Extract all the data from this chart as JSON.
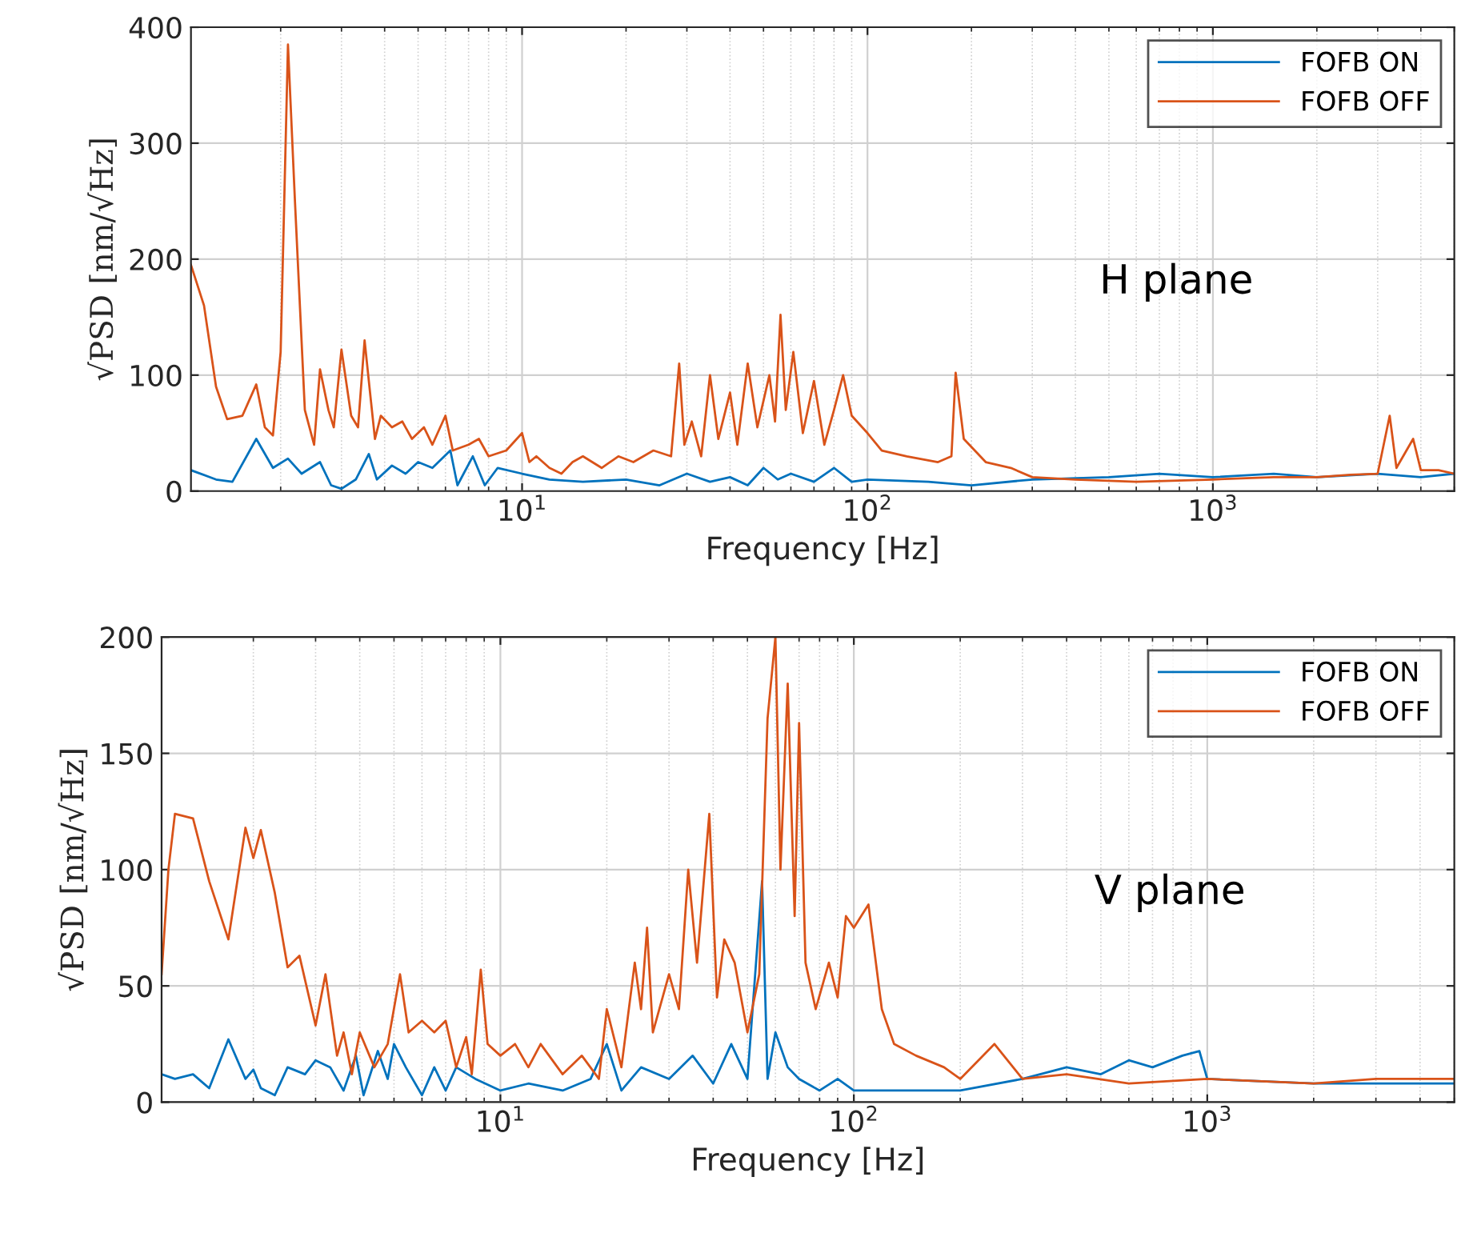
{
  "chart_data": [
    {
      "type": "line",
      "xlabel": "Frequency [Hz]",
      "ylabel": "√PSD [nm/√Hz]",
      "log": "x",
      "grid": true,
      "legend": "top right",
      "marker": "none",
      "line_style": "solid",
      "xlim": [
        1.1,
        5000
      ],
      "xticks": [
        {
          "value": 10,
          "label": "10$^{1}$"
        },
        {
          "value": 100,
          "label": "10$^{2}$"
        },
        {
          "value": 1000,
          "label": "10$^{3}$"
        }
      ],
      "ylim": [
        0,
        400
      ],
      "yticks": [
        0,
        100,
        200,
        300,
        400
      ],
      "annotations": [
        "H plane"
      ],
      "series": [
        {
          "name": "FOFB ON",
          "color": "#0072bd",
          "x": [
            1.1,
            1.3,
            1.45,
            1.7,
            1.9,
            2.1,
            2.3,
            2.6,
            2.8,
            3.0,
            3.3,
            3.6,
            3.8,
            4.2,
            4.6,
            5.0,
            5.5,
            6.2,
            6.5,
            7.2,
            7.8,
            8.5,
            10,
            12,
            15,
            20,
            25,
            30,
            35,
            40,
            45,
            50,
            55,
            60,
            70,
            80,
            90,
            100,
            150,
            200,
            300,
            500,
            700,
            1000,
            1500,
            2000,
            3000,
            4000,
            5000
          ],
          "values": [
            18,
            10,
            8,
            45,
            20,
            28,
            15,
            25,
            5,
            2,
            10,
            32,
            10,
            22,
            15,
            25,
            20,
            35,
            5,
            30,
            5,
            20,
            15,
            10,
            8,
            10,
            5,
            15,
            8,
            12,
            5,
            20,
            10,
            15,
            8,
            20,
            8,
            10,
            8,
            5,
            10,
            12,
            15,
            12,
            15,
            12,
            15,
            12,
            15
          ]
        },
        {
          "name": "FOFB OFF",
          "color": "#d95319",
          "x": [
            1.1,
            1.2,
            1.3,
            1.4,
            1.55,
            1.7,
            1.8,
            1.9,
            2.0,
            2.1,
            2.2,
            2.35,
            2.5,
            2.6,
            2.75,
            2.85,
            3.0,
            3.2,
            3.35,
            3.5,
            3.6,
            3.75,
            3.9,
            4.2,
            4.5,
            4.8,
            5.2,
            5.5,
            6,
            6.3,
            7,
            7.5,
            8,
            9,
            10,
            10.5,
            11,
            12,
            13,
            14,
            15,
            17,
            19,
            21,
            24,
            27,
            28.5,
            29.5,
            31,
            33,
            35,
            37,
            40,
            42,
            45,
            48,
            52,
            54,
            56,
            58,
            61,
            65,
            70,
            75,
            80,
            85,
            90,
            100,
            110,
            130,
            160,
            175,
            180,
            190,
            220,
            260,
            300,
            400,
            600,
            1000,
            1500,
            2000,
            2500,
            3000,
            3250,
            3400,
            3800,
            4000,
            4500,
            5000
          ],
          "values": [
            195,
            160,
            90,
            62,
            65,
            92,
            55,
            48,
            120,
            385,
            250,
            70,
            40,
            105,
            70,
            55,
            122,
            65,
            55,
            130,
            95,
            45,
            65,
            55,
            60,
            45,
            55,
            40,
            65,
            35,
            40,
            45,
            30,
            35,
            50,
            25,
            30,
            20,
            15,
            25,
            30,
            20,
            30,
            25,
            35,
            30,
            110,
            40,
            60,
            30,
            100,
            45,
            85,
            40,
            110,
            55,
            100,
            60,
            152,
            70,
            120,
            50,
            95,
            40,
            70,
            100,
            65,
            50,
            35,
            30,
            25,
            30,
            102,
            45,
            25,
            20,
            12,
            10,
            8,
            10,
            12,
            12,
            14,
            15,
            65,
            20,
            45,
            18,
            18,
            15
          ]
        }
      ]
    },
    {
      "type": "line",
      "xlabel": "Frequency [Hz]",
      "ylabel": "√PSD [nm/√Hz]",
      "log": "x",
      "grid": true,
      "legend": "top right",
      "marker": "none",
      "line_style": "solid",
      "xlim": [
        1.1,
        5000
      ],
      "xticks": [
        {
          "value": 10,
          "label": "10$^{1}$"
        },
        {
          "value": 100,
          "label": "10$^{2}$"
        },
        {
          "value": 1000,
          "label": "10$^{3}$"
        }
      ],
      "ylim": [
        0,
        200
      ],
      "yticks": [
        0,
        50,
        100,
        150,
        200
      ],
      "annotations": [
        "V plane"
      ],
      "series": [
        {
          "name": "FOFB ON",
          "color": "#0072bd",
          "x": [
            1.1,
            1.2,
            1.35,
            1.5,
            1.7,
            1.9,
            2.0,
            2.1,
            2.3,
            2.5,
            2.8,
            3.0,
            3.3,
            3.6,
            3.9,
            4.1,
            4.5,
            4.8,
            5.0,
            5.4,
            6,
            6.5,
            7,
            7.5,
            8.5,
            10,
            12,
            15,
            18,
            20,
            22,
            25,
            30,
            35,
            40,
            45,
            50,
            55,
            57,
            60,
            65,
            70,
            80,
            90,
            100,
            130,
            200,
            300,
            400,
            500,
            600,
            700,
            850,
            950,
            1000,
            2000,
            5000
          ],
          "values": [
            12,
            10,
            12,
            6,
            27,
            10,
            14,
            6,
            3,
            15,
            12,
            18,
            15,
            5,
            20,
            3,
            22,
            10,
            25,
            15,
            3,
            15,
            5,
            15,
            10,
            5,
            8,
            5,
            10,
            25,
            5,
            15,
            10,
            20,
            8,
            25,
            10,
            95,
            10,
            30,
            15,
            10,
            5,
            10,
            5,
            5,
            5,
            10,
            15,
            12,
            18,
            15,
            20,
            22,
            10,
            8,
            8
          ]
        },
        {
          "name": "FOFB OFF",
          "color": "#d95319",
          "x": [
            1.1,
            1.15,
            1.2,
            1.35,
            1.5,
            1.7,
            1.9,
            2.0,
            2.1,
            2.3,
            2.5,
            2.7,
            3.0,
            3.2,
            3.45,
            3.6,
            3.8,
            4.0,
            4.4,
            4.8,
            5.2,
            5.5,
            6,
            6.5,
            7,
            7.5,
            8,
            8.3,
            8.8,
            9.2,
            10,
            11,
            12,
            13,
            15,
            17,
            19,
            20,
            22,
            24,
            25,
            26,
            27,
            30,
            32,
            34,
            36,
            39,
            41,
            43,
            46,
            50,
            54,
            57,
            60,
            62,
            65,
            68,
            70,
            73,
            78,
            85,
            90,
            95,
            100,
            110,
            120,
            130,
            150,
            180,
            200,
            250,
            300,
            400,
            600,
            1000,
            2000,
            3000,
            5000
          ],
          "values": [
            55,
            100,
            124,
            122,
            95,
            70,
            118,
            105,
            117,
            90,
            58,
            63,
            33,
            55,
            20,
            30,
            12,
            30,
            15,
            25,
            55,
            30,
            35,
            30,
            35,
            15,
            28,
            12,
            57,
            25,
            20,
            25,
            15,
            25,
            12,
            20,
            10,
            40,
            15,
            60,
            40,
            75,
            30,
            55,
            40,
            100,
            60,
            124,
            45,
            70,
            60,
            30,
            55,
            165,
            200,
            100,
            180,
            80,
            163,
            60,
            40,
            60,
            45,
            80,
            75,
            85,
            40,
            25,
            20,
            15,
            10,
            25,
            10,
            12,
            8,
            10,
            8,
            10,
            10
          ]
        }
      ]
    }
  ]
}
